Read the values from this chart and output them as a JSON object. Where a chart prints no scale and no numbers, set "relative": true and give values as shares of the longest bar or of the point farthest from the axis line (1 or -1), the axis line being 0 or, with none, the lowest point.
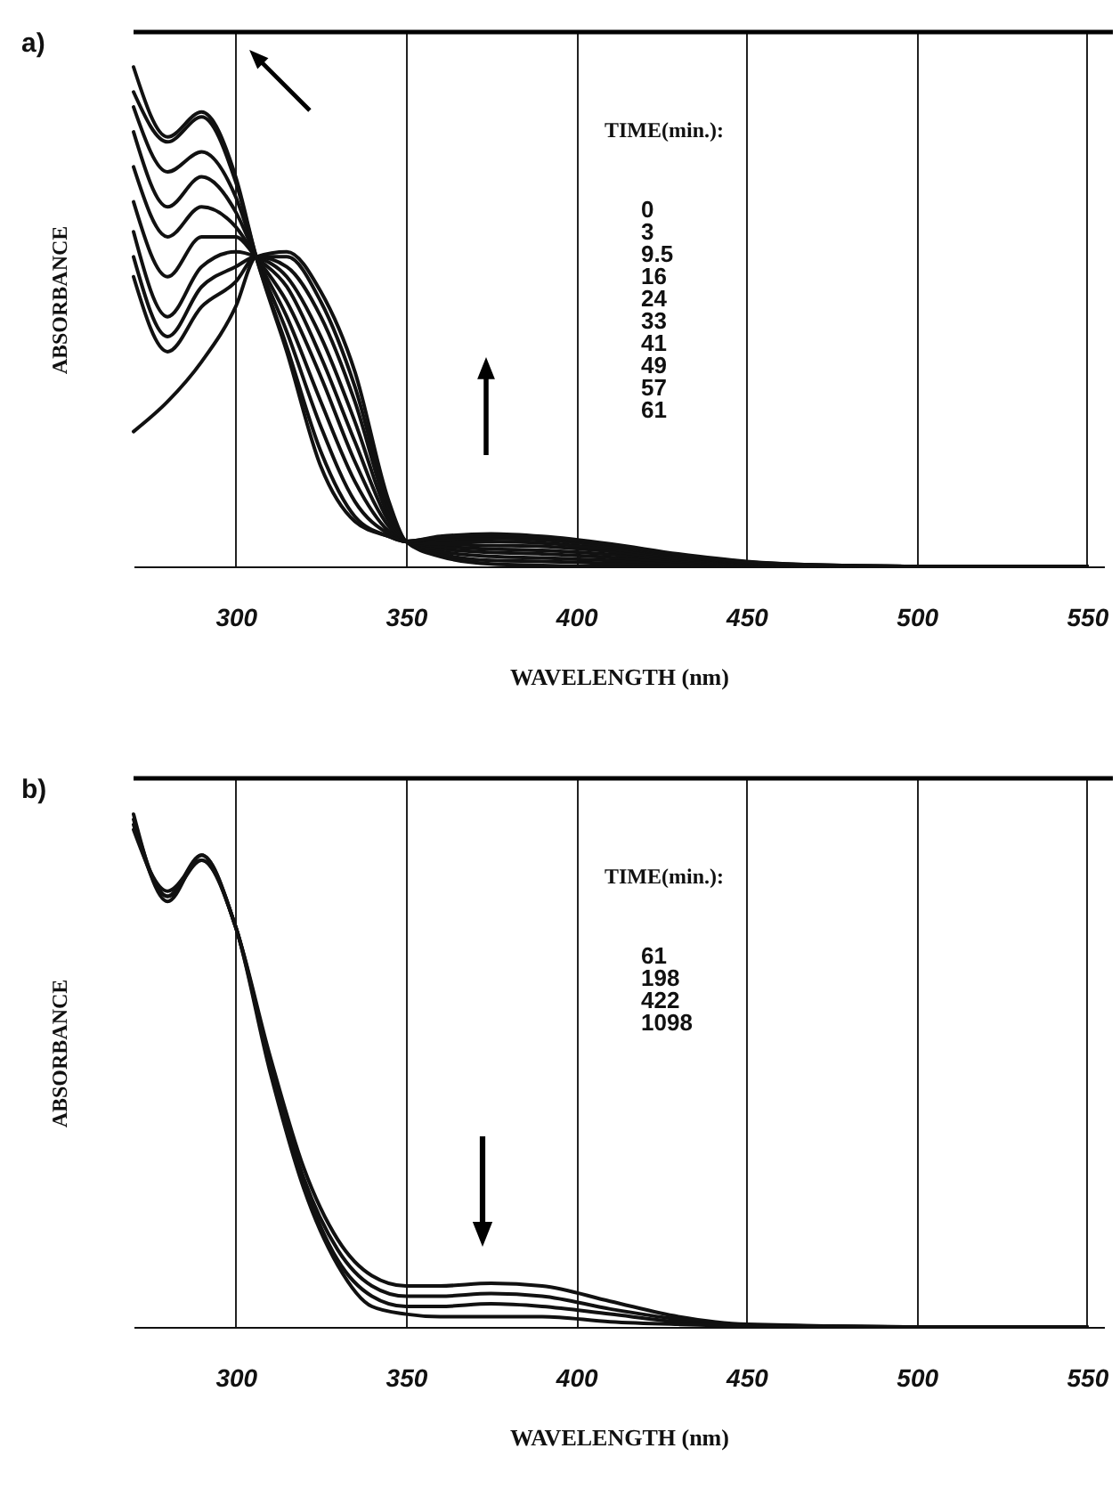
{
  "chart_data": [
    {
      "type": "line",
      "title": "a)",
      "xlabel": "WAVELENGTH (nm)",
      "ylabel": "ABSORBANCE",
      "relative": true,
      "grid": "x",
      "xlim": [
        270,
        555
      ],
      "xticks": [
        300,
        350,
        400,
        450,
        500,
        550
      ],
      "x": [
        270,
        280,
        290,
        300,
        306,
        315,
        325,
        335,
        345,
        350,
        360,
        375,
        390,
        410,
        430,
        450,
        470,
        500,
        550
      ],
      "annotations": [
        "TIME(min.):",
        "0",
        "3",
        "9.5",
        "16",
        "24",
        "33",
        "41",
        "49",
        "57",
        "61"
      ],
      "series": [
        {
          "color": "#111111",
          "values": [
            0.27,
            0.33,
            0.41,
            0.52,
            0.62,
            0.63,
            0.55,
            0.39,
            0.13,
            0.05,
            0.02,
            0.005,
            0.002,
            0,
            0,
            0,
            0,
            0,
            0
          ]
        },
        {
          "color": "#111111",
          "values": [
            0.58,
            0.43,
            0.52,
            0.57,
            0.62,
            0.62,
            0.53,
            0.36,
            0.12,
            0.05,
            0.025,
            0.012,
            0.01,
            0.006,
            0.003,
            0.001,
            0,
            0,
            0
          ]
        },
        {
          "color": "#111111",
          "values": [
            0.62,
            0.46,
            0.56,
            0.6,
            0.62,
            0.6,
            0.5,
            0.33,
            0.11,
            0.05,
            0.03,
            0.02,
            0.017,
            0.012,
            0.006,
            0.002,
            0,
            0,
            0
          ]
        },
        {
          "color": "#111111",
          "values": [
            0.67,
            0.5,
            0.6,
            0.63,
            0.62,
            0.58,
            0.46,
            0.29,
            0.1,
            0.05,
            0.035,
            0.028,
            0.025,
            0.018,
            0.01,
            0.003,
            0.001,
            0,
            0
          ]
        },
        {
          "color": "#111111",
          "values": [
            0.73,
            0.58,
            0.66,
            0.66,
            0.62,
            0.56,
            0.42,
            0.25,
            0.09,
            0.05,
            0.04,
            0.035,
            0.032,
            0.024,
            0.013,
            0.005,
            0.001,
            0,
            0
          ]
        },
        {
          "color": "#111111",
          "values": [
            0.8,
            0.66,
            0.72,
            0.68,
            0.62,
            0.53,
            0.38,
            0.21,
            0.08,
            0.05,
            0.045,
            0.042,
            0.04,
            0.03,
            0.016,
            0.006,
            0.002,
            0,
            0
          ]
        },
        {
          "color": "#111111",
          "values": [
            0.87,
            0.72,
            0.78,
            0.71,
            0.62,
            0.5,
            0.33,
            0.17,
            0.07,
            0.05,
            0.05,
            0.05,
            0.047,
            0.035,
            0.019,
            0.007,
            0.002,
            0,
            0
          ]
        },
        {
          "color": "#111111",
          "values": [
            0.92,
            0.79,
            0.83,
            0.74,
            0.62,
            0.47,
            0.28,
            0.13,
            0.065,
            0.05,
            0.055,
            0.056,
            0.053,
            0.04,
            0.021,
            0.008,
            0.002,
            0,
            0
          ]
        },
        {
          "color": "#111111",
          "values": [
            0.95,
            0.85,
            0.9,
            0.77,
            0.62,
            0.44,
            0.23,
            0.1,
            0.06,
            0.05,
            0.058,
            0.062,
            0.058,
            0.043,
            0.023,
            0.009,
            0.003,
            0,
            0
          ]
        },
        {
          "color": "#111111",
          "values": [
            1.0,
            0.86,
            0.91,
            0.78,
            0.62,
            0.43,
            0.2,
            0.09,
            0.06,
            0.05,
            0.06,
            0.065,
            0.06,
            0.045,
            0.025,
            0.01,
            0.003,
            0,
            0
          ]
        }
      ]
    },
    {
      "type": "line",
      "title": "b)",
      "xlabel": "WAVELENGTH (nm)",
      "ylabel": "ABSORBANCE",
      "relative": true,
      "grid": "x",
      "xlim": [
        270,
        555
      ],
      "xticks": [
        300,
        350,
        400,
        450,
        500,
        550
      ],
      "x": [
        270,
        280,
        290,
        300,
        310,
        320,
        330,
        340,
        350,
        360,
        375,
        390,
        410,
        430,
        450,
        500,
        550
      ],
      "annotations": [
        "TIME(min.):",
        "61",
        "198",
        "422",
        "1098"
      ],
      "series": [
        {
          "color": "#111111",
          "values": [
            1.0,
            0.83,
            0.92,
            0.78,
            0.53,
            0.31,
            0.17,
            0.1,
            0.08,
            0.08,
            0.085,
            0.08,
            0.05,
            0.02,
            0.005,
            0,
            0
          ]
        },
        {
          "color": "#111111",
          "values": [
            0.99,
            0.84,
            0.92,
            0.78,
            0.52,
            0.29,
            0.15,
            0.08,
            0.06,
            0.06,
            0.065,
            0.06,
            0.035,
            0.015,
            0.004,
            0,
            0
          ]
        },
        {
          "color": "#111111",
          "values": [
            0.98,
            0.84,
            0.91,
            0.78,
            0.51,
            0.28,
            0.13,
            0.06,
            0.04,
            0.04,
            0.045,
            0.04,
            0.025,
            0.01,
            0.003,
            0,
            0
          ]
        },
        {
          "color": "#111111",
          "values": [
            0.97,
            0.85,
            0.91,
            0.78,
            0.5,
            0.27,
            0.12,
            0.04,
            0.025,
            0.02,
            0.02,
            0.02,
            0.01,
            0.005,
            0.002,
            0,
            0
          ]
        }
      ]
    }
  ]
}
